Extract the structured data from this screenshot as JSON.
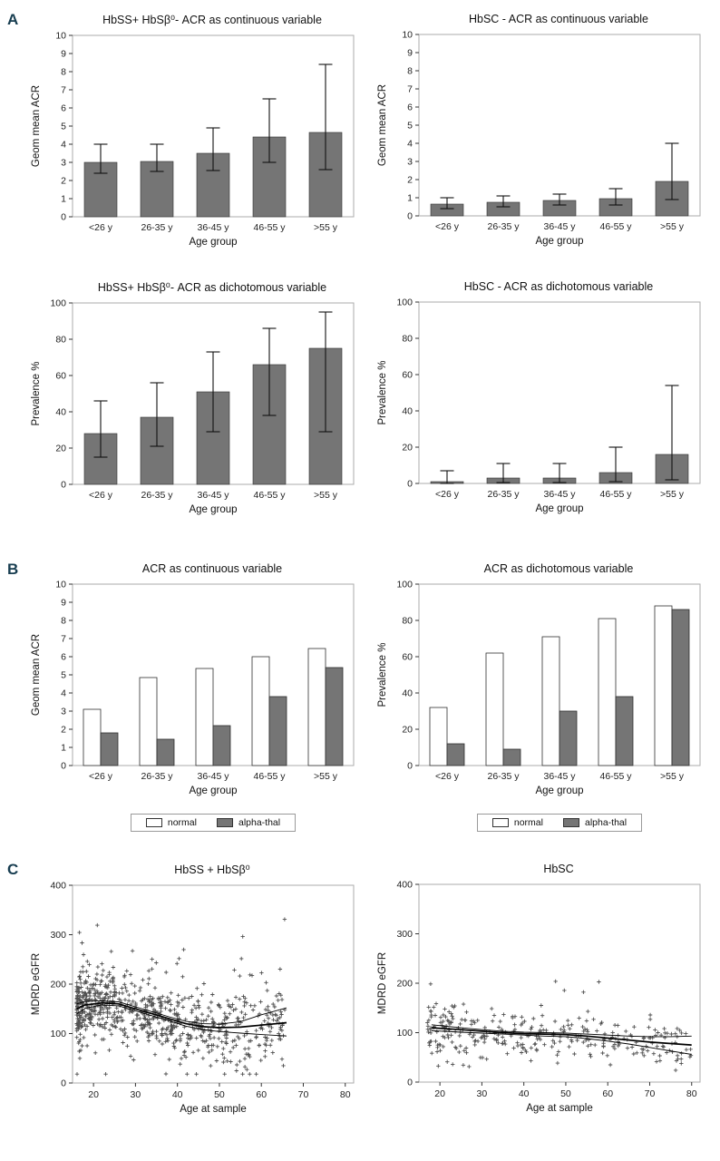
{
  "panels": {
    "a": "A",
    "b": "B",
    "c": "C"
  },
  "colors": {
    "bar_fill": "#757575",
    "bar_stroke": "#2f2f2f",
    "error_bar": "#111111",
    "plot_border": "#ababab",
    "panel_letter": "#173d50",
    "normal_fill": "#ffffff",
    "alpha_thal_fill": "#757575",
    "scatter_marker": "#3d3d3d",
    "fit_line": "#000000"
  },
  "chart_data": [
    {
      "id": "hbss-acr-continuous",
      "type": "bar",
      "title": "HbSS+ HbSβ⁰- ACR as continuous variable",
      "ylabel": "Geom mean ACR",
      "xlabel": "Age group",
      "categories": [
        "<26 y",
        "26-35 y",
        "36-45 y",
        "46-55 y",
        ">55 y"
      ],
      "values": [
        3.0,
        3.05,
        3.5,
        4.4,
        4.65
      ],
      "ci_low": [
        2.4,
        2.5,
        2.55,
        3.0,
        2.6
      ],
      "ci_high": [
        4.0,
        4.0,
        4.9,
        6.5,
        8.4
      ],
      "ylim": [
        0,
        10
      ],
      "yticks": [
        0,
        1,
        2,
        3,
        4,
        5,
        6,
        7,
        8,
        9,
        10
      ]
    },
    {
      "id": "hbsc-acr-continuous",
      "type": "bar",
      "title": "HbSC - ACR as continuous variable",
      "ylabel": "Geom mean ACR",
      "xlabel": "Age group",
      "categories": [
        "<26 y",
        "26-35 y",
        "36-45 y",
        "46-55 y",
        ">55 y"
      ],
      "values": [
        0.65,
        0.75,
        0.85,
        0.95,
        1.9
      ],
      "ci_low": [
        0.4,
        0.5,
        0.6,
        0.6,
        0.9
      ],
      "ci_high": [
        1.0,
        1.1,
        1.2,
        1.5,
        4.0
      ],
      "ylim": [
        0,
        10
      ],
      "yticks": [
        0,
        1,
        2,
        3,
        4,
        5,
        6,
        7,
        8,
        9,
        10
      ]
    },
    {
      "id": "hbss-acr-dichotomous",
      "type": "bar",
      "title": "HbSS+ HbSβ⁰- ACR as dichotomous variable",
      "ylabel": "Prevalence %",
      "xlabel": "Age group",
      "categories": [
        "<26 y",
        "26-35 y",
        "36-45 y",
        "46-55 y",
        ">55 y"
      ],
      "values": [
        28,
        37,
        51,
        66,
        75
      ],
      "ci_low": [
        15,
        21,
        29,
        38,
        29
      ],
      "ci_high": [
        46,
        56,
        73,
        86,
        95
      ],
      "ylim": [
        0,
        100
      ],
      "yticks": [
        0,
        20,
        40,
        60,
        80,
        100
      ]
    },
    {
      "id": "hbsc-acr-dichotomous",
      "type": "bar",
      "title": "HbSC - ACR as dichotomous variable",
      "ylabel": "Prevalence %",
      "xlabel": "Age group",
      "categories": [
        "<26 y",
        "26-35 y",
        "36-45 y",
        "46-55 y",
        ">55 y"
      ],
      "values": [
        1,
        3,
        3,
        6,
        16
      ],
      "ci_low": [
        0,
        0.5,
        0.5,
        1,
        2
      ],
      "ci_high": [
        7,
        11,
        11,
        20,
        54
      ],
      "ylim": [
        0,
        100
      ],
      "yticks": [
        0,
        20,
        40,
        60,
        80,
        100
      ]
    },
    {
      "id": "alpha-thal-acr-continuous",
      "type": "grouped-bar",
      "title": "ACR as continuous variable",
      "ylabel": "Geom mean ACR",
      "xlabel": "Age group",
      "categories": [
        "<26 y",
        "26-35 y",
        "36-45 y",
        "46-55 y",
        ">55 y"
      ],
      "series": [
        {
          "name": "normal",
          "color": "#ffffff",
          "values": [
            3.1,
            4.85,
            5.35,
            6.0,
            6.45
          ]
        },
        {
          "name": "alpha-thal",
          "color": "#757575",
          "values": [
            1.8,
            1.45,
            2.2,
            3.8,
            5.4
          ]
        }
      ],
      "ylim": [
        0,
        10
      ],
      "yticks": [
        0,
        1,
        2,
        3,
        4,
        5,
        6,
        7,
        8,
        9,
        10
      ],
      "legend": [
        "normal",
        "alpha-thal"
      ]
    },
    {
      "id": "alpha-thal-acr-dichotomous",
      "type": "grouped-bar",
      "title": "ACR as dichotomous variable",
      "ylabel": "Prevalence %",
      "xlabel": "Age group",
      "categories": [
        "<26 y",
        "26-35 y",
        "36-45 y",
        "46-55 y",
        ">55 y"
      ],
      "series": [
        {
          "name": "normal",
          "color": "#ffffff",
          "values": [
            32,
            62,
            71,
            81,
            88
          ]
        },
        {
          "name": "alpha-thal",
          "color": "#757575",
          "values": [
            12,
            9,
            30,
            38,
            86
          ]
        }
      ],
      "ylim": [
        0,
        100
      ],
      "yticks": [
        0,
        20,
        40,
        60,
        80,
        100
      ],
      "legend": [
        "normal",
        "alpha-thal"
      ]
    },
    {
      "id": "hbss-egfr-scatter",
      "type": "scatter",
      "title": "HbSS + HbSβ⁰",
      "ylabel": "MDRD eGFR",
      "xlabel": "Age at sample",
      "xlim": [
        15,
        82
      ],
      "ylim": [
        0,
        400
      ],
      "xticks": [
        20,
        30,
        40,
        50,
        60,
        70,
        80
      ],
      "yticks": [
        0,
        100,
        200,
        300,
        400
      ],
      "n_points": 800,
      "seed": 7,
      "age_min": 16,
      "age_max": 66,
      "age_skew": 1.7,
      "noise": 40,
      "outlier_hi_p": 0.06,
      "outlier_hi_mag": 160,
      "outlier_lo_p": 0.1,
      "outlier_lo_mag": 90,
      "vmin": 18,
      "vmax": 400,
      "trend": [
        [
          16,
          150
        ],
        [
          18,
          158
        ],
        [
          22,
          162
        ],
        [
          26,
          160
        ],
        [
          30,
          150
        ],
        [
          34,
          140
        ],
        [
          38,
          130
        ],
        [
          42,
          120
        ],
        [
          46,
          114
        ],
        [
          50,
          112
        ],
        [
          55,
          113
        ],
        [
          60,
          117
        ],
        [
          66,
          122
        ]
      ],
      "ci_upper": [
        [
          16,
          160
        ],
        [
          18,
          165
        ],
        [
          22,
          166
        ],
        [
          26,
          164
        ],
        [
          30,
          154
        ],
        [
          34,
          144
        ],
        [
          38,
          134
        ],
        [
          42,
          125
        ],
        [
          46,
          120
        ],
        [
          50,
          119
        ],
        [
          55,
          124
        ],
        [
          60,
          138
        ],
        [
          66,
          152
        ]
      ],
      "ci_lower": [
        [
          16,
          140
        ],
        [
          18,
          151
        ],
        [
          22,
          158
        ],
        [
          26,
          156
        ],
        [
          30,
          146
        ],
        [
          34,
          136
        ],
        [
          38,
          126
        ],
        [
          42,
          115
        ],
        [
          46,
          108
        ],
        [
          50,
          104
        ],
        [
          55,
          101
        ],
        [
          60,
          98
        ],
        [
          66,
          95
        ]
      ]
    },
    {
      "id": "hbsc-egfr-scatter",
      "type": "scatter",
      "title": "HbSC",
      "ylabel": "MDRD eGFR",
      "xlabel": "Age at sample",
      "xlim": [
        15,
        82
      ],
      "ylim": [
        0,
        400
      ],
      "xticks": [
        20,
        30,
        40,
        50,
        60,
        70,
        80
      ],
      "yticks": [
        0,
        100,
        200,
        300,
        400
      ],
      "n_points": 320,
      "seed": 13,
      "age_min": 17,
      "age_max": 80,
      "age_skew": 1.25,
      "noise": 26,
      "outlier_hi_p": 0.05,
      "outlier_hi_mag": 110,
      "outlier_lo_p": 0.07,
      "outlier_lo_mag": 55,
      "vmin": 22,
      "vmax": 300,
      "trend": [
        [
          18,
          110
        ],
        [
          25,
          106
        ],
        [
          30,
          103
        ],
        [
          35,
          100
        ],
        [
          40,
          98
        ],
        [
          45,
          97
        ],
        [
          50,
          96
        ],
        [
          55,
          93
        ],
        [
          60,
          89
        ],
        [
          65,
          85
        ],
        [
          70,
          81
        ],
        [
          75,
          78
        ],
        [
          80,
          75
        ]
      ],
      "ci_upper": [
        [
          18,
          116
        ],
        [
          25,
          110
        ],
        [
          30,
          106
        ],
        [
          35,
          103
        ],
        [
          40,
          101
        ],
        [
          45,
          100
        ],
        [
          50,
          99
        ],
        [
          55,
          97
        ],
        [
          60,
          95
        ],
        [
          65,
          93
        ],
        [
          70,
          92
        ],
        [
          75,
          92
        ],
        [
          80,
          93
        ]
      ],
      "ci_lower": [
        [
          18,
          104
        ],
        [
          25,
          101
        ],
        [
          30,
          99
        ],
        [
          35,
          97
        ],
        [
          40,
          95
        ],
        [
          45,
          93
        ],
        [
          50,
          92
        ],
        [
          55,
          88
        ],
        [
          60,
          83
        ],
        [
          65,
          77
        ],
        [
          70,
          70
        ],
        [
          75,
          63
        ],
        [
          80,
          56
        ]
      ]
    }
  ]
}
